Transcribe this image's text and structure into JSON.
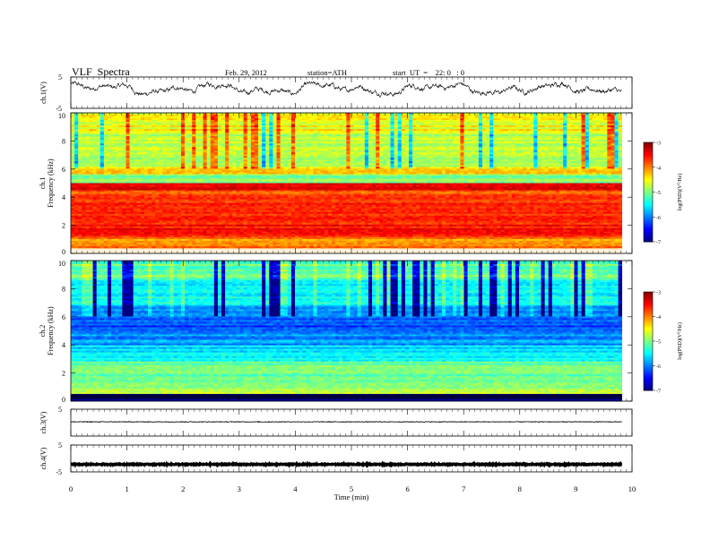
{
  "header": {
    "title": "VLF  Spectra",
    "date": "Feb. 29, 2012",
    "station": "station=ATH",
    "start": "start  UT  =    22: 0   : 0"
  },
  "chart_data": [
    {
      "type": "line",
      "name": "ch1-waveform",
      "ylabel": "ch.1(V)",
      "yticks": [
        "5",
        "-5"
      ],
      "ylim": [
        -5,
        5
      ],
      "xlim": [
        0,
        10
      ],
      "description_values": "noisy waveform wandering roughly between -2 and 5 V"
    },
    {
      "type": "heatmap",
      "name": "ch1-spectrogram",
      "ylabel_line1": "ch.1",
      "ylabel_line2": "Frequency  (kHz)",
      "yticks": [
        "0",
        "2",
        "4",
        "6",
        "8",
        "10"
      ],
      "ylim": [
        0,
        10
      ],
      "xlim": [
        0,
        10
      ],
      "colorbar": {
        "label": "log(PSD)(V²/Hz)",
        "ticks": [
          "-3",
          "-4",
          "-5",
          "-6",
          "-7"
        ],
        "range": [
          -7,
          -3
        ]
      }
    },
    {
      "type": "heatmap",
      "name": "ch2-spectrogram",
      "ylabel_line1": "ch.2",
      "ylabel_line2": "Frequency  (kHz)",
      "yticks": [
        "0",
        "2",
        "4",
        "6",
        "8",
        "10"
      ],
      "ylim": [
        0,
        10
      ],
      "xlim": [
        0,
        10
      ],
      "colorbar": {
        "label": "log(PSD)(V²/Hz)",
        "ticks": [
          "-3",
          "-4",
          "-5",
          "-6",
          "-7"
        ],
        "range": [
          -7,
          -3
        ]
      }
    },
    {
      "type": "line",
      "name": "ch3-waveform",
      "ylabel": "ch.3(V)",
      "yticks": [
        "5"
      ],
      "ylim": [
        -5,
        5
      ],
      "xlim": [
        0,
        10
      ]
    },
    {
      "type": "line",
      "name": "ch4-waveform",
      "ylabel": "ch.4(V)",
      "yticks": [
        "5",
        "-5"
      ],
      "ylim": [
        -5,
        5
      ],
      "xlim": [
        0,
        10
      ]
    }
  ],
  "xaxis": {
    "label": "Time  (min)",
    "ticks": [
      "0",
      "1",
      "2",
      "3",
      "4",
      "5",
      "6",
      "7",
      "8",
      "9",
      "10"
    ]
  },
  "colors": {
    "jet": [
      "#00008f",
      "#0000ff",
      "#0080ff",
      "#00ffff",
      "#80ff80",
      "#ffff00",
      "#ff8000",
      "#ff0000",
      "#800000"
    ]
  }
}
